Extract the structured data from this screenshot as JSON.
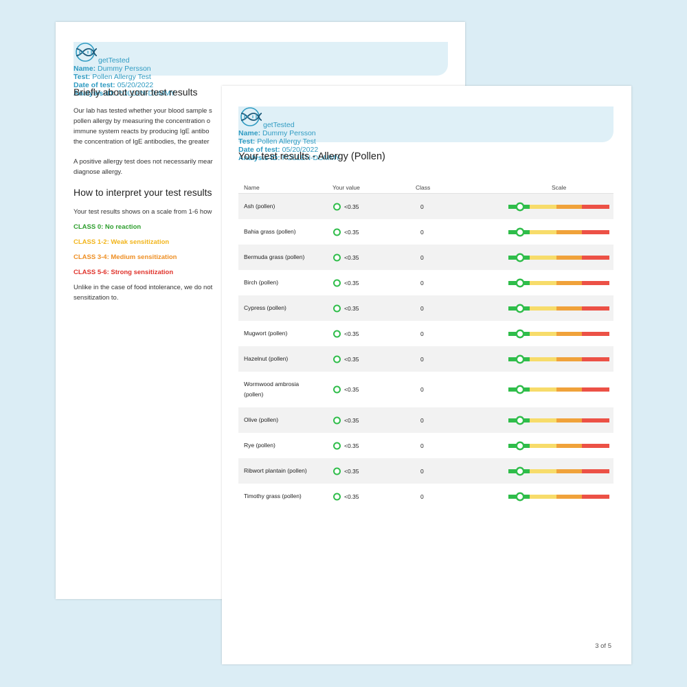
{
  "back_page": {
    "header": {
      "logo": "getTested",
      "name_label": "Name:",
      "name": "Dummy Persson",
      "test_label": "Test:",
      "test": "Pollen Allergy Test",
      "date_label": "Date of test:",
      "date": "05/20/2022",
      "analysis_label": "Analysis-ID:",
      "analysis_id": "POLLEN-DUMMY"
    },
    "heading_1": "Briefly about your test results",
    "paragraph_1": [
      "Our lab has tested whether your blood sample s",
      "pollen allergy by measuring the concentration o",
      "immune system reacts by producing IgE antibo",
      "the concentration of IgE antibodies, the greater"
    ],
    "paragraph_2": [
      "A positive allergy test does not necessarily mear",
      "diagnose allergy."
    ],
    "heading_2": "How to interpret your test results",
    "paragraph_3": "Your test results shows on a scale from 1-6 how",
    "classes": [
      {
        "text": "CLASS 0: No reaction",
        "color": "#2e9e2e"
      },
      {
        "text": "CLASS 1-2: Weak sensitization",
        "color": "#f2b51c"
      },
      {
        "text": "CLASS 3-4: Medium sensitization",
        "color": "#ee8f24"
      },
      {
        "text": "CLASS 5-6: Strong sensitization",
        "color": "#e0342c"
      }
    ],
    "paragraph_4": [
      "Unlike in the case of food intolerance, we do not",
      "sensitization to."
    ]
  },
  "front_page": {
    "header": {
      "logo": "getTested",
      "name_label": "Name:",
      "name": "Dummy Persson",
      "test_label": "Test:",
      "test": "Pollen Allergy Test",
      "date_label": "Date of test:",
      "date": "05/20/2022",
      "analysis_label": "Analysis-ID:",
      "analysis_id": "POLLEN-DUMMY"
    },
    "title": "Your test results - Allergy (Pollen)",
    "table": {
      "columns": [
        "Name",
        "Your value",
        "Class",
        "Scale"
      ],
      "rows": [
        {
          "name": "Ash (pollen)",
          "value": "<0.35",
          "class": 0
        },
        {
          "name": "Bahia grass (pollen)",
          "value": "<0.35",
          "class": 0
        },
        {
          "name": "Bermuda grass (pollen)",
          "value": "<0.35",
          "class": 0
        },
        {
          "name": "Birch (pollen)",
          "value": "<0.35",
          "class": 0
        },
        {
          "name": "Cypress (pollen)",
          "value": "<0.35",
          "class": 0
        },
        {
          "name": "Mugwort (pollen)",
          "value": "<0.35",
          "class": 0
        },
        {
          "name": "Hazelnut (pollen)",
          "value": "<0.35",
          "class": 0
        },
        {
          "name": "Wormwood ambrosia (pollen)",
          "value": "<0.35",
          "class": 0
        },
        {
          "name": "Olive (pollen)",
          "value": "<0.35",
          "class": 0
        },
        {
          "name": "Rye (pollen)",
          "value": "<0.35",
          "class": 0
        },
        {
          "name": "Ribwort plantain (pollen)",
          "value": "<0.35",
          "class": 0
        },
        {
          "name": "Timothy grass (pollen)",
          "value": "<0.35",
          "class": 0
        }
      ]
    },
    "footer": "3 of 5"
  }
}
